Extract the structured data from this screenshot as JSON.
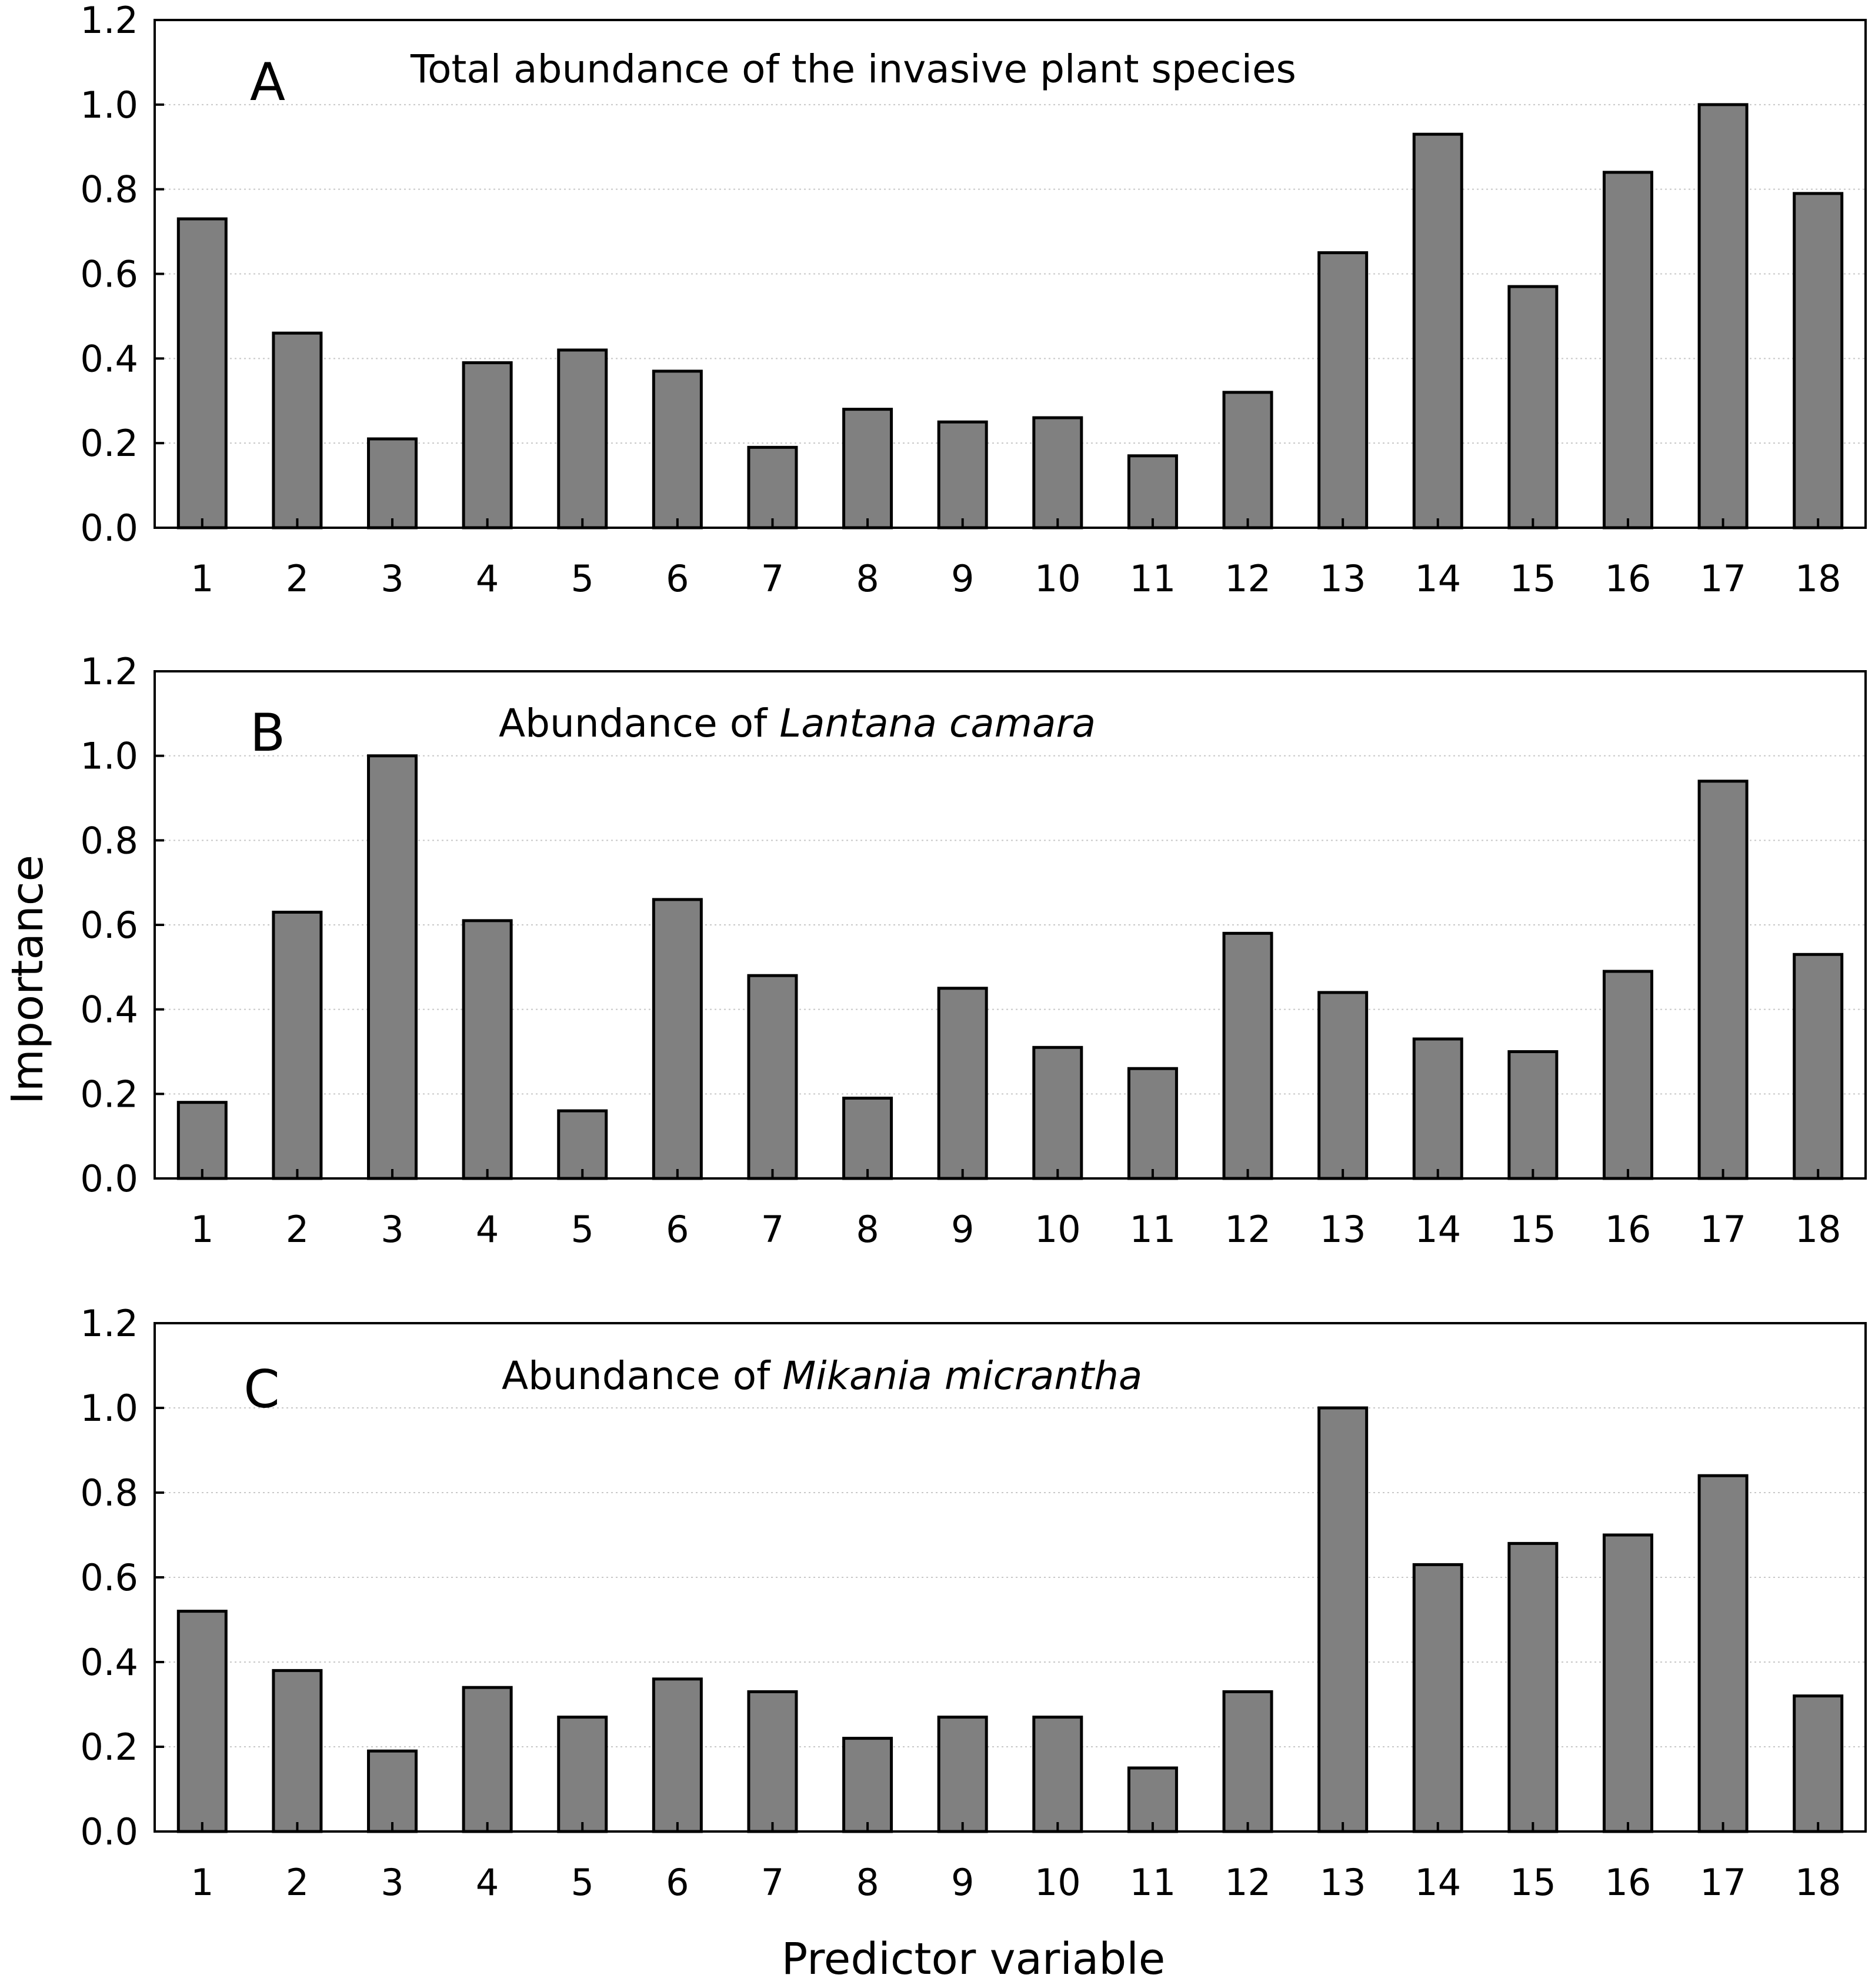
{
  "xlabel": "Predictor variable",
  "ylabel": "Importance",
  "chart_data": [
    {
      "type": "bar",
      "panel_letter": "A",
      "title_parts": [
        {
          "text": "Total abundance of the invasive plant species",
          "italic": false
        }
      ],
      "categories": [
        "1",
        "2",
        "3",
        "4",
        "5",
        "6",
        "7",
        "8",
        "9",
        "10",
        "11",
        "12",
        "13",
        "14",
        "15",
        "16",
        "17",
        "18"
      ],
      "values": [
        0.73,
        0.46,
        0.21,
        0.39,
        0.42,
        0.37,
        0.19,
        0.28,
        0.25,
        0.26,
        0.17,
        0.32,
        0.65,
        0.93,
        0.57,
        0.84,
        1.0,
        0.79
      ],
      "ylim": [
        0,
        1.2
      ],
      "yticks": [
        "0.0",
        "0.2",
        "0.4",
        "0.6",
        "0.8",
        "1.0",
        "1.2"
      ],
      "grid": true,
      "bar_color": "#808080"
    },
    {
      "type": "bar",
      "panel_letter": "B",
      "title_parts": [
        {
          "text": "Abundance of ",
          "italic": false
        },
        {
          "text": "Lantana camara",
          "italic": true
        }
      ],
      "categories": [
        "1",
        "2",
        "3",
        "4",
        "5",
        "6",
        "7",
        "8",
        "9",
        "10",
        "11",
        "12",
        "13",
        "14",
        "15",
        "16",
        "17",
        "18"
      ],
      "values": [
        0.18,
        0.63,
        1.0,
        0.61,
        0.16,
        0.66,
        0.48,
        0.19,
        0.45,
        0.31,
        0.26,
        0.58,
        0.44,
        0.33,
        0.3,
        0.49,
        0.94,
        0.53
      ],
      "ylim": [
        0,
        1.2
      ],
      "yticks": [
        "0.0",
        "0.2",
        "0.4",
        "0.6",
        "0.8",
        "1.0",
        "1.2"
      ],
      "grid": true,
      "bar_color": "#808080"
    },
    {
      "type": "bar",
      "panel_letter": "C",
      "title_parts": [
        {
          "text": "Abundance of ",
          "italic": false
        },
        {
          "text": "Mikania micrantha",
          "italic": true
        }
      ],
      "categories": [
        "1",
        "2",
        "3",
        "4",
        "5",
        "6",
        "7",
        "8",
        "9",
        "10",
        "11",
        "12",
        "13",
        "14",
        "15",
        "16",
        "17",
        "18"
      ],
      "values": [
        0.52,
        0.38,
        0.19,
        0.34,
        0.27,
        0.36,
        0.33,
        0.22,
        0.27,
        0.27,
        0.15,
        0.33,
        1.0,
        0.63,
        0.68,
        0.7,
        0.84,
        0.32
      ],
      "ylim": [
        0,
        1.2
      ],
      "yticks": [
        "0.0",
        "0.2",
        "0.4",
        "0.6",
        "0.8",
        "1.0",
        "1.2"
      ],
      "grid": true,
      "bar_color": "#808080"
    }
  ]
}
